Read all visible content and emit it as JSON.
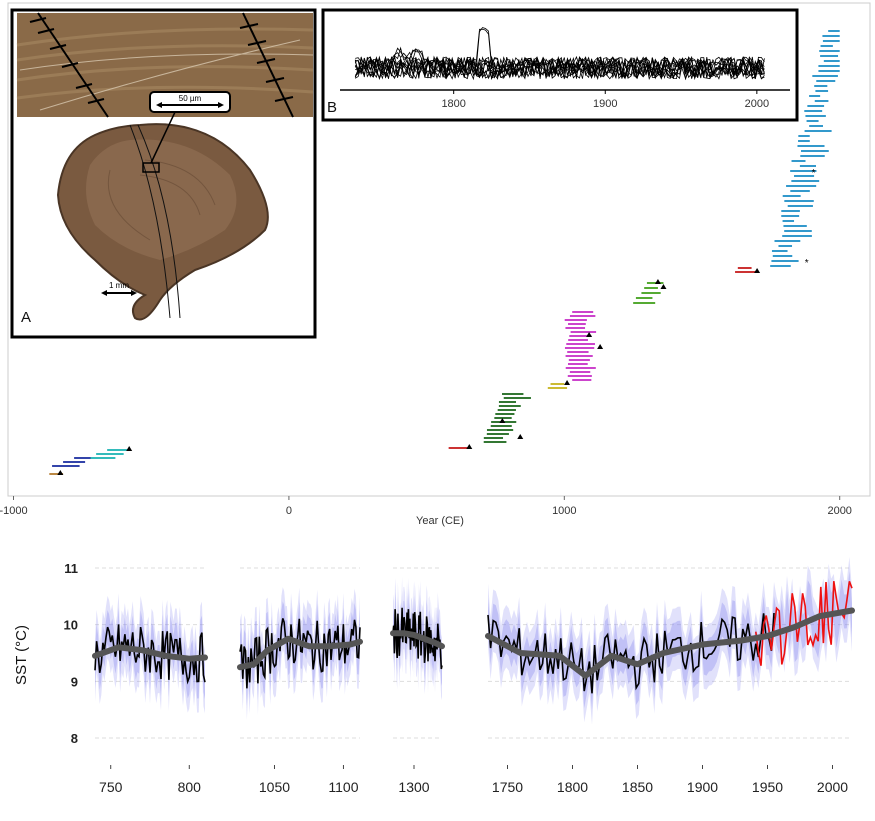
{
  "chart_data": [
    {
      "type": "timeline",
      "xlabel": "Year (CE)",
      "xticks": [
        -1000,
        0,
        1000,
        2000
      ],
      "xtick_labels": [
        "-1000",
        "0",
        "1000",
        "2000"
      ],
      "xlim": [
        -1020,
        2110
      ],
      "colors": {
        "steelblue": "#3399cc",
        "red": "#cc3333",
        "green": "#55aa33",
        "magenta": "#cc44cc",
        "darkgreen": "#337733",
        "olive": "#ccbb33",
        "navy": "#3344aa",
        "cyan": "#33bbbb",
        "brown": "#bb8844"
      },
      "clusters": [
        {
          "color": "#bb8844",
          "bars": [
            [
              -870,
              -820
            ]
          ]
        },
        {
          "color": "#3344aa",
          "bars": [
            [
              -860,
              -760
            ],
            [
              -820,
              -740
            ],
            [
              -780,
              -680
            ]
          ]
        },
        {
          "color": "#33bbbb",
          "bars": [
            [
              -720,
              -630
            ],
            [
              -700,
              -600
            ],
            [
              -660,
              -580
            ]
          ]
        },
        {
          "color": "#cc3333",
          "bars": [
            [
              580,
              650
            ]
          ]
        },
        {
          "color": "#337733",
          "bars": [
            [
              700,
              800
            ],
            [
              710,
              790
            ],
            [
              720,
              820
            ],
            [
              730,
              810
            ],
            [
              740,
              830
            ],
            [
              750,
              800
            ],
            [
              760,
              840
            ]
          ]
        },
        {
          "color": "#ccbb33",
          "bars": [
            [
              940,
              1010
            ],
            [
              950,
              1000
            ]
          ]
        },
        {
          "color": "#cc44cc",
          "bars": [
            [
              1000,
              1080
            ],
            [
              1010,
              1090
            ],
            [
              1000,
              1110
            ],
            [
              1020,
              1120
            ],
            [
              1000,
              1100
            ],
            [
              1030,
              1130
            ]
          ]
        },
        {
          "color": "#55aa33",
          "bars": [
            [
              1250,
              1330
            ],
            [
              1260,
              1320
            ],
            [
              1280,
              1350
            ],
            [
              1290,
              1340
            ],
            [
              1300,
              1360
            ]
          ]
        },
        {
          "color": "#cc3333",
          "bars": [
            [
              1620,
              1700
            ],
            [
              1630,
              1680
            ]
          ]
        },
        {
          "color": "#3399cc",
          "bars": [
            [
              1730,
              1800
            ],
            [
              1750,
              1840
            ],
            [
              1780,
              1890
            ],
            [
              1800,
              1900
            ],
            [
              1820,
              1930
            ],
            [
              1840,
              1960
            ],
            [
              1860,
              1990
            ],
            [
              1880,
              2000
            ]
          ]
        }
      ],
      "markers": [
        {
          "x": -830,
          "cluster": 0,
          "kind": "triangle"
        },
        {
          "x": -580,
          "cluster": 2,
          "kind": "triangle"
        },
        {
          "x": 655,
          "cluster": 3,
          "kind": "triangle"
        },
        {
          "x": 775,
          "cluster": 4,
          "kind": "triangle"
        },
        {
          "x": 840,
          "cluster": 4,
          "kind": "triangle"
        },
        {
          "x": 1010,
          "cluster": 5,
          "kind": "triangle"
        },
        {
          "x": 1090,
          "cluster": 6,
          "kind": "triangle"
        },
        {
          "x": 1130,
          "cluster": 6,
          "kind": "triangle"
        },
        {
          "x": 1340,
          "cluster": 7,
          "kind": "triangle"
        },
        {
          "x": 1360,
          "cluster": 7,
          "kind": "triangle"
        },
        {
          "x": 1700,
          "cluster": 8,
          "kind": "triangle"
        },
        {
          "x": 1905,
          "cluster": 9,
          "kind": "star"
        },
        {
          "x": 1880,
          "cluster": 9,
          "kind": "star"
        }
      ]
    },
    {
      "type": "line",
      "panel_label": "B",
      "xticks": [
        1800,
        1900,
        2000
      ],
      "xtick_labels": [
        "1800",
        "1900",
        "2000"
      ],
      "xlim": [
        1725,
        2010
      ],
      "series_count": 12,
      "color": "#000000"
    },
    {
      "type": "line",
      "ylabel": "SST (°C)",
      "yticks": [
        8,
        9,
        10,
        11
      ],
      "ytick_labels": [
        "8",
        "9",
        "10",
        "11"
      ],
      "ylim": [
        7.6,
        11.3
      ],
      "segments": [
        {
          "xlim": [
            740,
            810
          ],
          "xticks": [
            750,
            800
          ],
          "xtick_labels": [
            "750",
            "800"
          ]
        },
        {
          "xlim": [
            1025,
            1112
          ],
          "xticks": [
            1050,
            1100
          ],
          "xtick_labels": [
            "1050",
            "1100"
          ]
        },
        {
          "xlim": [
            1270,
            1340
          ],
          "xticks": [
            1300
          ],
          "xtick_labels": [
            "1300"
          ]
        },
        {
          "xlim": [
            1735,
            2015
          ],
          "xticks": [
            1750,
            1800,
            1850,
            1900,
            1950,
            2000
          ],
          "xtick_labels": [
            "1750",
            "1800",
            "1850",
            "1900",
            "1950",
            "2000"
          ]
        }
      ],
      "smooth_series": [
        {
          "segment": 0,
          "x": [
            740,
            755,
            770,
            785,
            800,
            810
          ],
          "y": [
            9.45,
            9.6,
            9.55,
            9.45,
            9.4,
            9.42
          ]
        },
        {
          "segment": 1,
          "x": [
            1025,
            1035,
            1045,
            1060,
            1075,
            1090,
            1105,
            1112
          ],
          "y": [
            9.25,
            9.3,
            9.55,
            9.75,
            9.62,
            9.62,
            9.65,
            9.7
          ]
        },
        {
          "segment": 2,
          "x": [
            1270,
            1285,
            1300,
            1315,
            1330,
            1340
          ],
          "y": [
            9.85,
            9.85,
            9.82,
            9.75,
            9.68,
            9.62
          ]
        },
        {
          "segment": 3,
          "x": [
            1735,
            1760,
            1790,
            1810,
            1830,
            1850,
            1870,
            1900,
            1930,
            1950,
            1970,
            1990,
            2015
          ],
          "y": [
            9.8,
            9.5,
            9.45,
            9.1,
            9.45,
            9.3,
            9.5,
            9.65,
            9.72,
            9.8,
            9.95,
            10.15,
            10.25
          ]
        }
      ],
      "red_series_x_range": [
        1940,
        2015
      ],
      "colors": {
        "black": "#000000",
        "smooth": "#555555",
        "red": "#ee1111",
        "band": "#8888ee"
      }
    }
  ],
  "panel_a": {
    "label": "A",
    "scale_top": "50 µm",
    "scale_bottom": "1 mm"
  }
}
